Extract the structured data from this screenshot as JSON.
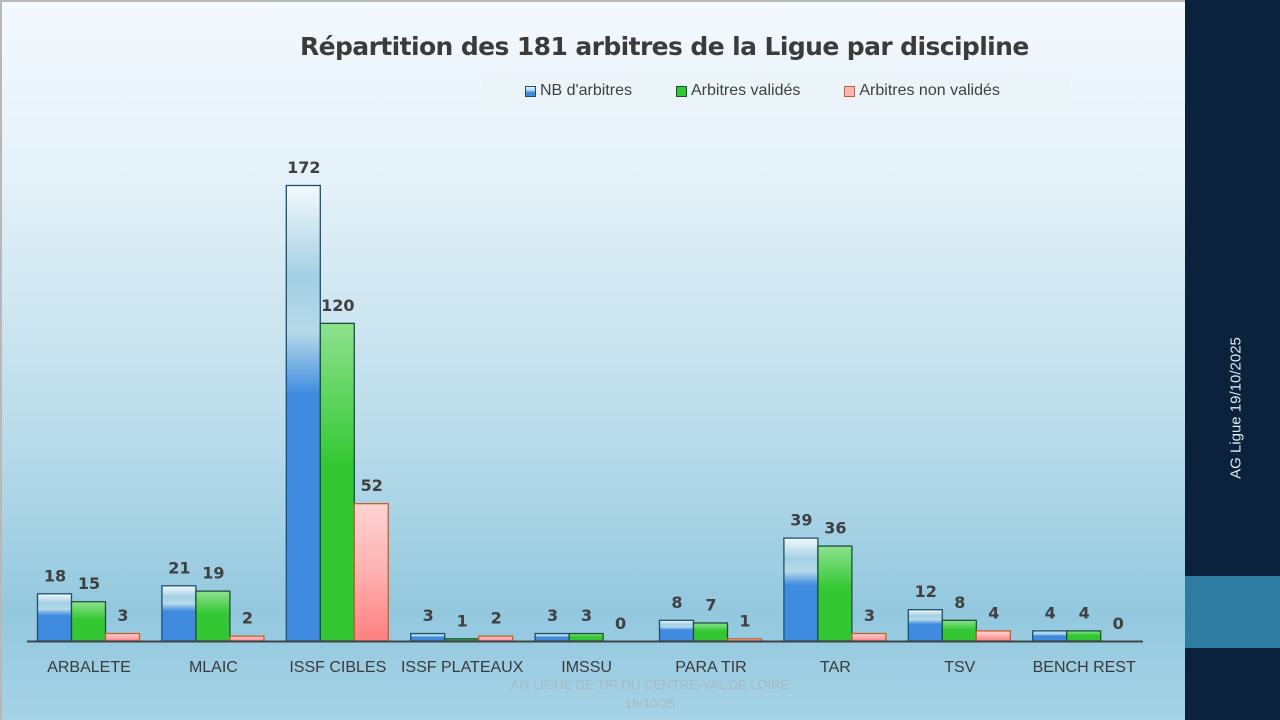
{
  "chart_data": {
    "type": "bar",
    "title": "Répartition des 181 arbitres de la Ligue par discipline",
    "categories": [
      "ARBALETE",
      "MLAIC",
      "ISSF CIBLES",
      "ISSF PLATEAUX",
      "IMSSU",
      "PARA TIR",
      "TAR",
      "TSV",
      "BENCH REST"
    ],
    "series": [
      {
        "name": "NB d'arbitres",
        "color": "#3f8be0",
        "values": [
          18,
          21,
          172,
          3,
          3,
          8,
          39,
          12,
          4
        ]
      },
      {
        "name": "Arbitres validés",
        "color": "#33c833",
        "values": [
          15,
          19,
          120,
          1,
          3,
          7,
          36,
          8,
          4
        ]
      },
      {
        "name": "Arbitres non validés",
        "color": "#ffb4b4",
        "values": [
          3,
          2,
          52,
          2,
          0,
          1,
          3,
          4,
          0
        ]
      }
    ],
    "legend_position": "top-right",
    "ylim": [
      0,
      172
    ],
    "grid": false,
    "xlabel": "",
    "ylabel": ""
  },
  "footer": {
    "line1": "AG LIGUE DE TIR DU CENTRE-VAL DE LOIRE",
    "line2": "19/10/25"
  },
  "sidebar": {
    "label": "AG Ligue 19/10/2025",
    "background": "#0c213b",
    "band_color": "#2e7ca1"
  }
}
